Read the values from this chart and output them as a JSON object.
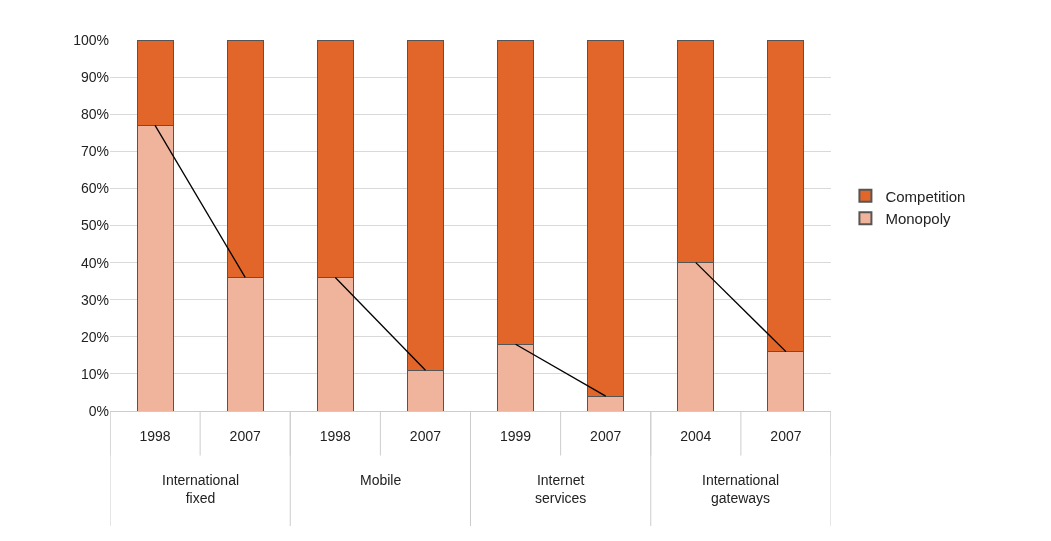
{
  "chart_data": {
    "type": "bar",
    "stacked": true,
    "categories": [
      "1998",
      "2007",
      "1998",
      "2007",
      "1999",
      "2007",
      "2004",
      "2007"
    ],
    "series": [
      {
        "name": "Monopoly",
        "color": "#f0b49c",
        "values": [
          77,
          36,
          36,
          11,
          18,
          4,
          40,
          16
        ]
      },
      {
        "name": "Competition",
        "color": "#e2662a",
        "values": [
          23,
          64,
          64,
          89,
          82,
          96,
          60,
          84
        ]
      },
      {
        "type": "line",
        "color": "#000000",
        "values": [
          77,
          36,
          null,
          null,
          null,
          null,
          null,
          null
        ]
      },
      {
        "type": "line",
        "color": "#000000",
        "values": [
          null,
          null,
          36,
          11,
          null,
          null,
          null,
          null
        ]
      },
      {
        "type": "line",
        "color": "#000000",
        "values": [
          null,
          null,
          null,
          null,
          18,
          4,
          null,
          null
        ]
      },
      {
        "type": "line",
        "color": "#000000",
        "values": [
          null,
          null,
          null,
          null,
          null,
          null,
          40,
          16
        ]
      }
    ],
    "annotations": [
      "International\nfixed",
      "Mobile",
      "Internet\nservices",
      "International\ngateways"
    ],
    "ylim": [
      0,
      100
    ],
    "yticks": [
      {
        "value": 0,
        "label": "0%"
      },
      {
        "value": 10,
        "label": "10%"
      },
      {
        "value": 20,
        "label": "20%"
      },
      {
        "value": 30,
        "label": "30%"
      },
      {
        "value": 40,
        "label": "40%"
      },
      {
        "value": 50,
        "label": "50%"
      },
      {
        "value": 60,
        "label": "60%"
      },
      {
        "value": 70,
        "label": "70%"
      },
      {
        "value": 80,
        "label": "80%"
      },
      {
        "value": 90,
        "label": "90%"
      },
      {
        "value": 100,
        "label": "100%"
      }
    ],
    "grid": "y",
    "legend": "right"
  }
}
